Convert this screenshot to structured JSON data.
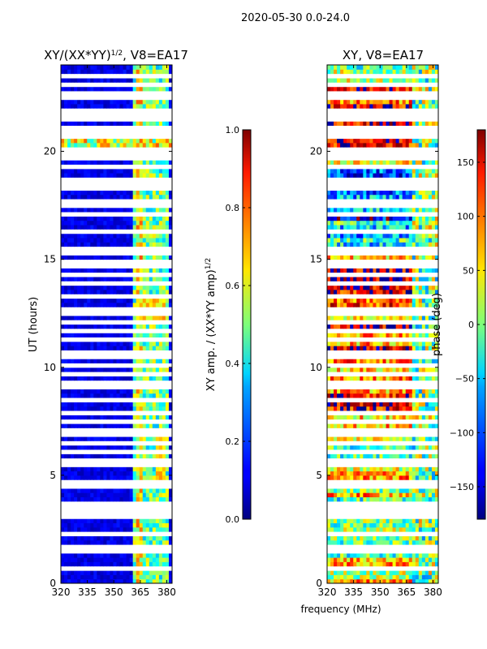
{
  "figure": {
    "suptitle": "2020-05-30 0.0-24.0",
    "xlabel": "frequency (MHz)"
  },
  "chart_data": [
    {
      "type": "heatmap",
      "id": "amp",
      "title_main": "XY/(XX*YY)",
      "title_exp": "1/2",
      "title_suffix": ", V8=EA17",
      "xlabel": "frequency (MHz)",
      "ylabel": "UT (hours)",
      "xlim": [
        320,
        383
      ],
      "ylim": [
        0,
        24
      ],
      "xticks": [
        320,
        335,
        350,
        365,
        380
      ],
      "yticks": [
        0,
        5,
        10,
        15,
        20
      ],
      "colormap": "jet",
      "colorbar": {
        "label_main": "XY amp. / (XX*YY amp)",
        "label_exp": "1/2",
        "range": [
          0.0,
          1.0
        ],
        "ticks": [
          "0.0",
          "0.2",
          "0.4",
          "0.6",
          "0.8",
          "1.0"
        ],
        "tick_values": [
          0.0,
          0.2,
          0.4,
          0.6,
          0.8,
          1.0
        ]
      }
    },
    {
      "type": "heatmap",
      "id": "phase",
      "title_main": "XY, V8=EA17",
      "xlabel": "frequency (MHz)",
      "ylabel": "",
      "xlim": [
        320,
        383
      ],
      "ylim": [
        0,
        24
      ],
      "xticks": [
        320,
        335,
        350,
        365,
        380
      ],
      "yticks": [
        0,
        5,
        10,
        15,
        20
      ],
      "colormap": "jet",
      "colorbar": {
        "label_main": "phase (deg)",
        "range": [
          -180,
          180
        ],
        "ticks": [
          "150",
          "100",
          "50",
          "0",
          "−50",
          "−100",
          "−150"
        ],
        "tick_values": [
          150,
          100,
          50,
          0,
          -50,
          -100,
          -150
        ]
      }
    }
  ],
  "flagged_ut_hours": [
    0.6,
    1.4,
    1.55,
    1.65,
    2.1,
    2.2,
    2.9,
    3.1,
    3.4,
    3.5,
    4.3,
    4.6,
    5.3,
    5.6,
    6.0,
    6.3,
    6.7,
    7.05,
    7.3,
    7.45,
    7.85,
    8.3,
    8.45,
    9.0,
    9.25,
    9.65,
    10.05,
    10.35,
    10.6,
    11.2,
    11.55,
    11.9,
    12.3,
    12.6,
    13.15,
    13.7,
    14.1,
    14.5,
    14.75,
    15.2,
    15.45,
    16.1,
    16.25,
    17.0,
    17.4,
    17.65,
    18.1,
    18.4,
    18.6,
    19.1,
    19.5,
    19.7,
    20.0,
    20.5,
    20.85,
    21.0,
    21.3,
    21.6,
    21.85,
    22.3,
    22.5,
    23.0,
    23.4
  ]
}
